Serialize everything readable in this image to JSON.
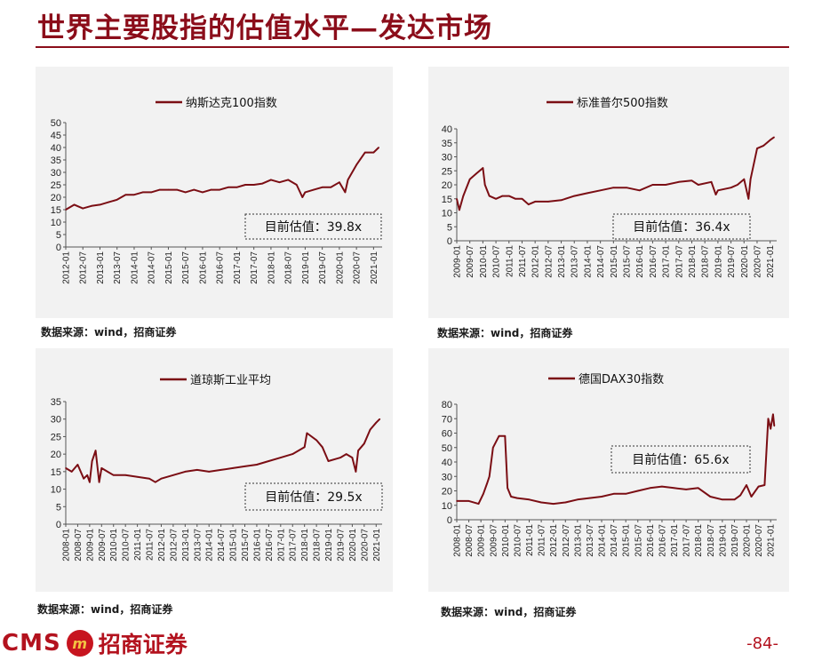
{
  "page": {
    "title": "世界主要股指的估值水平—发达市场",
    "page_number": "-84-",
    "logo_text": "CMS",
    "logo_mark": "m",
    "logo_cn": "招商证券"
  },
  "colors": {
    "accent": "#8b0d1a",
    "panel_bg": "#f2f2f2",
    "series": "#7b0e14"
  },
  "chart_data": [
    {
      "type": "line",
      "legend": "纳斯达克100指数",
      "annotation": "目前估值：39.8x",
      "source": "数据来源：wind，招商证券",
      "ylim": [
        0,
        50
      ],
      "yticks": [
        0,
        5,
        10,
        15,
        20,
        25,
        30,
        35,
        40,
        45,
        50
      ],
      "xlabels": [
        "2012-01",
        "2012-07",
        "2013-01",
        "2013-07",
        "2014-01",
        "2014-07",
        "2015-01",
        "2015-07",
        "2016-01",
        "2016-07",
        "2017-01",
        "2017-07",
        "2018-01",
        "2018-07",
        "2019-01",
        "2019-07",
        "2020-01",
        "2020-07",
        "2021-01"
      ],
      "x_end": 2021.25,
      "x": [
        2012.0,
        2012.25,
        2012.5,
        2012.75,
        2013.0,
        2013.25,
        2013.5,
        2013.75,
        2014.0,
        2014.25,
        2014.5,
        2014.75,
        2015.0,
        2015.25,
        2015.5,
        2015.75,
        2016.0,
        2016.25,
        2016.5,
        2016.75,
        2017.0,
        2017.25,
        2017.5,
        2017.75,
        2018.0,
        2018.25,
        2018.5,
        2018.75,
        2018.92,
        2019.0,
        2019.25,
        2019.5,
        2019.75,
        2020.0,
        2020.17,
        2020.25,
        2020.5,
        2020.75,
        2021.0,
        2021.15
      ],
      "y": [
        15,
        17,
        15.5,
        16.5,
        17,
        18,
        19,
        21,
        21,
        22,
        22,
        23,
        23,
        23,
        22,
        23,
        22,
        23,
        23,
        24,
        24,
        25,
        25,
        25.5,
        27,
        26,
        27,
        25,
        20,
        22,
        23,
        24,
        24,
        26,
        22,
        27,
        33,
        38,
        38,
        40
      ]
    },
    {
      "type": "line",
      "legend": "标准普尔500指数",
      "annotation": "目前估值：36.4x",
      "source": "数据来源：wind，招商证券",
      "ylim": [
        0,
        40
      ],
      "yticks": [
        0,
        5,
        10,
        15,
        20,
        25,
        30,
        35,
        40
      ],
      "xlabels": [
        "2009-01",
        "2009-07",
        "2010-01",
        "2010-07",
        "2011-01",
        "2011-07",
        "2012-01",
        "2012-07",
        "2013-01",
        "2013-07",
        "2014-01",
        "2014-07",
        "2015-01",
        "2015-07",
        "2016-01",
        "2016-07",
        "2017-01",
        "2017-07",
        "2018-01",
        "2018-07",
        "2019-01",
        "2019-07",
        "2020-01",
        "2020-07",
        "2021-01"
      ],
      "x_end": 2021.25,
      "x": [
        2009.0,
        2009.1,
        2009.25,
        2009.5,
        2009.75,
        2010.0,
        2010.08,
        2010.25,
        2010.5,
        2010.75,
        2011.0,
        2011.25,
        2011.5,
        2011.75,
        2012.0,
        2012.5,
        2013.0,
        2013.5,
        2014.0,
        2014.5,
        2015.0,
        2015.5,
        2016.0,
        2016.5,
        2017.0,
        2017.5,
        2018.0,
        2018.25,
        2018.75,
        2018.92,
        2019.0,
        2019.5,
        2019.75,
        2020.0,
        2020.17,
        2020.25,
        2020.5,
        2020.75,
        2021.0,
        2021.15
      ],
      "y": [
        15,
        11,
        16,
        22,
        24,
        26,
        20,
        16,
        15,
        16,
        16,
        15,
        15,
        13,
        14,
        14,
        14.5,
        16,
        17,
        18,
        19,
        19,
        18,
        20,
        20,
        21,
        21.5,
        20,
        21,
        16.5,
        18,
        19,
        20,
        22,
        15,
        22,
        33,
        34,
        36,
        37
      ]
    },
    {
      "type": "line",
      "legend": "道琼斯工业平均",
      "annotation": "目前估值：29.5x",
      "source": "数据来源：wind，招商证券",
      "ylim": [
        0,
        35
      ],
      "yticks": [
        0,
        5,
        10,
        15,
        20,
        25,
        30,
        35
      ],
      "xlabels": [
        "2008-01",
        "2008-07",
        "2009-01",
        "2009-07",
        "2010-01",
        "2010-07",
        "2011-01",
        "2011-07",
        "2012-01",
        "2012-07",
        "2013-01",
        "2013-07",
        "2014-01",
        "2014-07",
        "2015-01",
        "2015-07",
        "2016-01",
        "2016-07",
        "2017-01",
        "2017-07",
        "2018-01",
        "2018-07",
        "2019-01",
        "2019-07",
        "2020-01",
        "2020-07",
        "2021-01"
      ],
      "x_end": 2021.25,
      "x": [
        2008.0,
        2008.25,
        2008.5,
        2008.75,
        2008.9,
        2009.0,
        2009.1,
        2009.25,
        2009.4,
        2009.5,
        2009.75,
        2010.0,
        2010.5,
        2011.0,
        2011.5,
        2011.75,
        2012.0,
        2012.5,
        2013.0,
        2013.5,
        2014.0,
        2014.5,
        2015.0,
        2015.5,
        2016.0,
        2016.5,
        2017.0,
        2017.5,
        2018.0,
        2018.1,
        2018.5,
        2018.75,
        2019.0,
        2019.5,
        2019.75,
        2020.0,
        2020.15,
        2020.25,
        2020.5,
        2020.75,
        2021.0,
        2021.15
      ],
      "y": [
        16,
        15,
        17,
        13,
        14,
        12,
        18,
        21,
        12,
        16,
        15,
        14,
        14,
        13.5,
        13,
        12,
        13,
        14,
        15,
        15.5,
        15,
        15.5,
        16,
        16.5,
        17,
        18,
        19,
        20,
        22,
        26,
        24,
        22,
        18,
        19,
        20,
        19,
        15,
        21,
        23,
        27,
        29,
        30
      ]
    },
    {
      "type": "line",
      "legend": "德国DAX30指数",
      "annotation": "目前估值：65.6x",
      "source": "数据来源：wind，招商证券",
      "ylim": [
        0,
        80
      ],
      "yticks": [
        0,
        10,
        20,
        30,
        40,
        50,
        60,
        70,
        80
      ],
      "xlabels": [
        "2008-01",
        "2008-07",
        "2009-01",
        "2009-07",
        "2010-01",
        "2010-07",
        "2011-01",
        "2011-07",
        "2012-01",
        "2012-07",
        "2013-01",
        "2013-07",
        "2014-01",
        "2014-07",
        "2015-01",
        "2015-07",
        "2016-01",
        "2016-07",
        "2017-01",
        "2017-07",
        "2018-01",
        "2018-07",
        "2019-01",
        "2019-07",
        "2020-01",
        "2020-07",
        "2021-01"
      ],
      "x_end": 2021.25,
      "x": [
        2008.0,
        2008.5,
        2008.9,
        2009.1,
        2009.25,
        2009.35,
        2009.5,
        2009.75,
        2010.0,
        2010.05,
        2010.1,
        2010.25,
        2010.5,
        2011.0,
        2011.5,
        2012.0,
        2012.5,
        2013.0,
        2013.5,
        2014.0,
        2014.5,
        2015.0,
        2015.5,
        2016.0,
        2016.5,
        2017.0,
        2017.5,
        2018.0,
        2018.5,
        2019.0,
        2019.5,
        2019.75,
        2020.0,
        2020.2,
        2020.5,
        2020.75,
        2020.9,
        2021.0,
        2021.1,
        2021.15
      ],
      "y": [
        13,
        13,
        11,
        18,
        25,
        30,
        50,
        58,
        58,
        40,
        22,
        16,
        15,
        14,
        12,
        11,
        12,
        14,
        15,
        16,
        18,
        18,
        20,
        22,
        23,
        22,
        21,
        22,
        16,
        14,
        14,
        17,
        24,
        16,
        23,
        24,
        70,
        63,
        73,
        65
      ]
    }
  ]
}
